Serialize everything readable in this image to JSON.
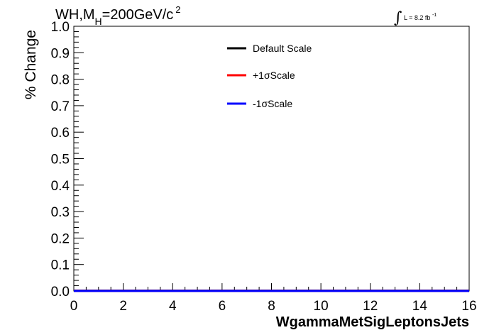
{
  "chart_data": {
    "type": "line",
    "title_parts": {
      "prefix": "WH,M",
      "subscript": "H",
      "main": "=200GeV/c",
      "superscript": "2"
    },
    "lumi_label": {
      "integral": "∫",
      "text": "L = 8.2 fb",
      "superscript": "-1"
    },
    "xlabel": "WgammaMetSigLeptonsJets",
    "ylabel": "% Change",
    "xlim": [
      0,
      16
    ],
    "ylim": [
      0,
      1
    ],
    "x_ticks": [
      0,
      2,
      4,
      6,
      8,
      10,
      12,
      14,
      16
    ],
    "x_tick_labels": [
      "0",
      "2",
      "4",
      "6",
      "8",
      "10",
      "12",
      "14",
      "16"
    ],
    "y_ticks": [
      0.0,
      0.1,
      0.2,
      0.3,
      0.4,
      0.5,
      0.6,
      0.7,
      0.8,
      0.9,
      1.0
    ],
    "y_tick_labels": [
      "0.0",
      "0.1",
      "0.2",
      "0.3",
      "0.4",
      "0.5",
      "0.6",
      "0.7",
      "0.8",
      "0.9",
      "1.0"
    ],
    "grid": false,
    "legend_position": "top-right",
    "series": [
      {
        "name": "Default Scale",
        "color": "#000000",
        "x": [
          0,
          16
        ],
        "y": [
          0,
          0
        ]
      },
      {
        "name": "+1σScale",
        "color": "#ff0000",
        "x": [
          0,
          16
        ],
        "y": [
          0,
          0
        ]
      },
      {
        "name": "-1σScale",
        "color": "#0000ff",
        "x": [
          0,
          16
        ],
        "y": [
          0,
          0
        ]
      }
    ]
  }
}
